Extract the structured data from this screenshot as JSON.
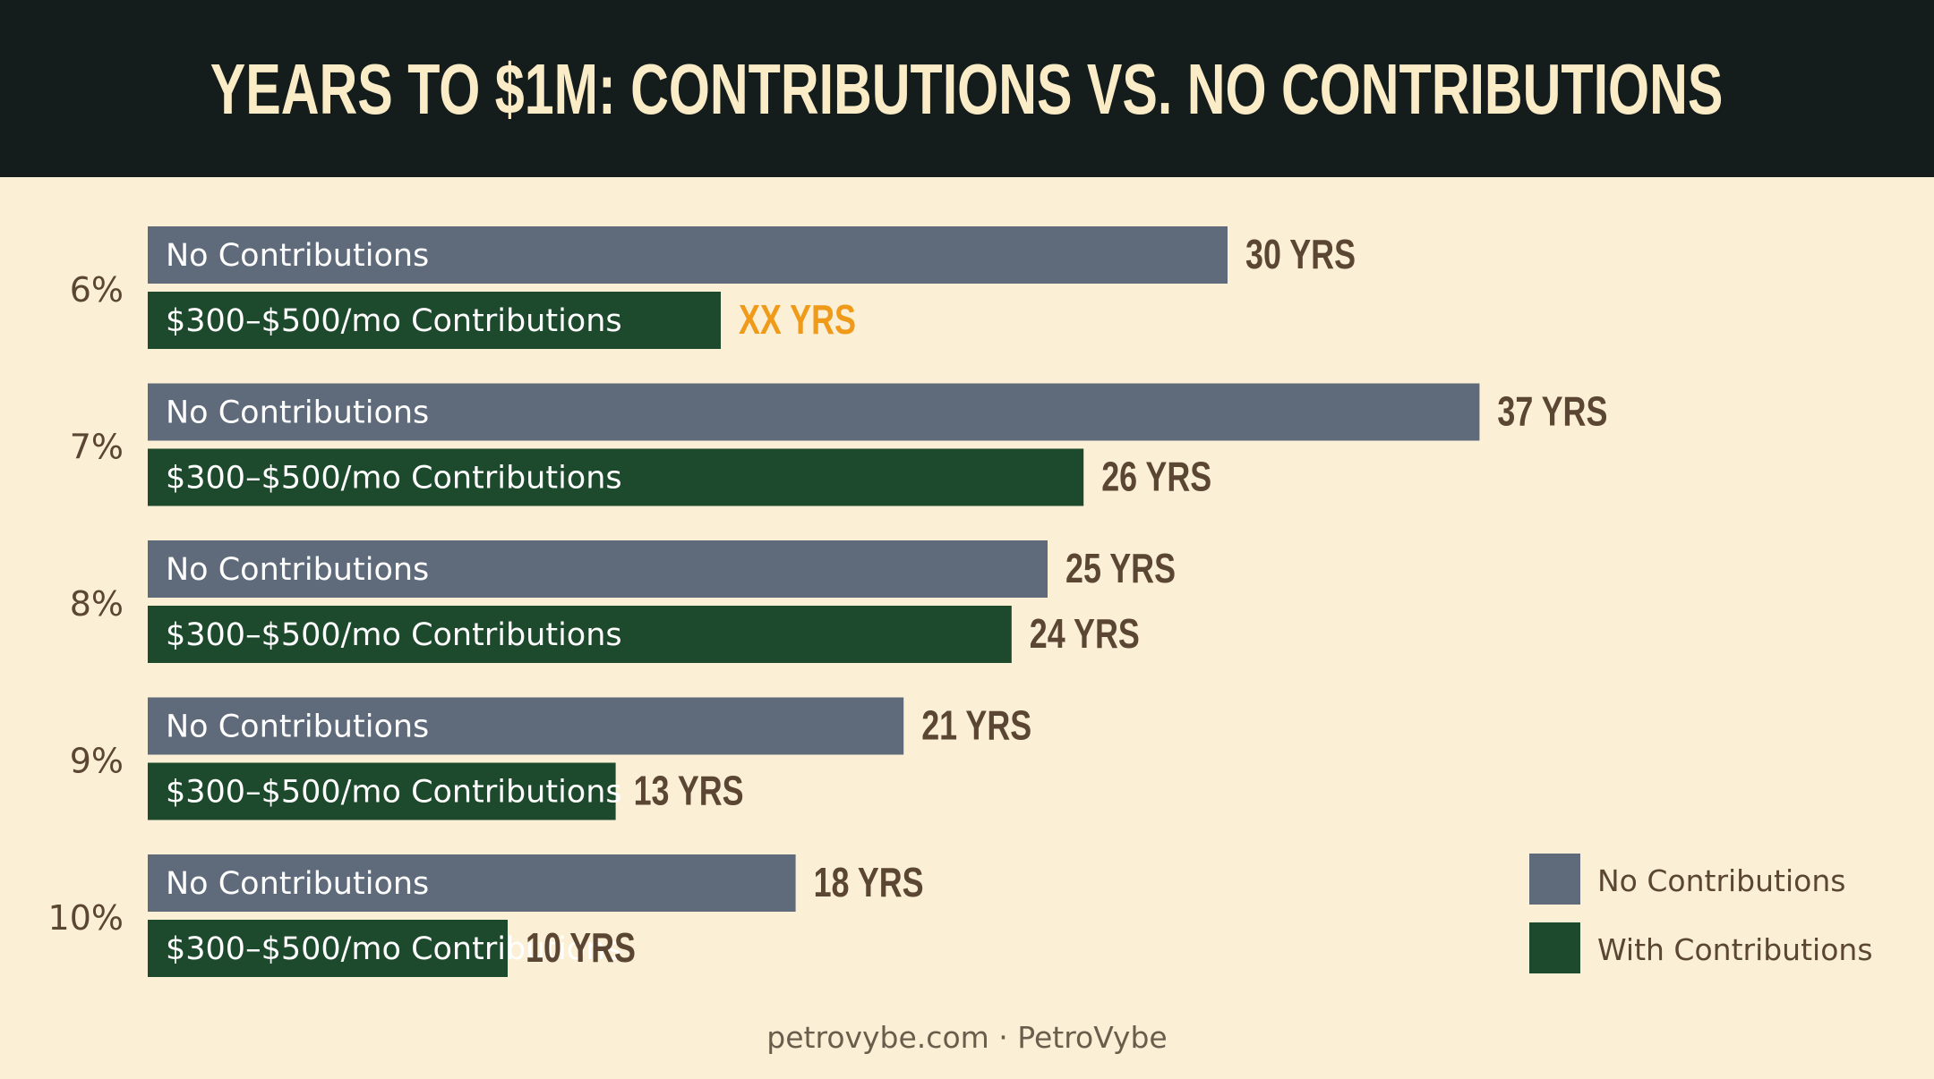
{
  "colors": {
    "header_bg": "#141c1c",
    "title": "#fbecc8",
    "background": "#fbefd6",
    "no_contrib": "#5f6b7a",
    "with_contrib": "#1d4a2c",
    "value_text": "#5a4632",
    "highlight": "#f09a1a",
    "bar_text": "#ffffff"
  },
  "chart_data": {
    "type": "bar",
    "orientation": "horizontal",
    "title": "YEARS TO $1M: CONTRIBUTIONS VS. NO CONTRIBUTIONS",
    "categories": [
      "6%",
      "7%",
      "8%",
      "9%",
      "10%"
    ],
    "bar_labels": {
      "no_contrib": "No Contributions",
      "with_contrib": "$300–$500/mo Contributions"
    },
    "series": [
      {
        "name": "No Contributions",
        "color": "#5f6b7a",
        "values": [
          30,
          37,
          25,
          21,
          18
        ],
        "labels": [
          "30 YRS",
          "37 YRS",
          "25 YRS",
          "21 YRS",
          "18 YRS"
        ]
      },
      {
        "name": "With Contributions",
        "color": "#1d4a2c",
        "values": [
          null,
          26,
          24,
          13,
          10
        ],
        "labels": [
          "XX YRS",
          "26 YRS",
          "24 YRS",
          "13 YRS",
          "10 YRS"
        ]
      }
    ],
    "scale_max": 37,
    "legend": [
      "No Contributions",
      "With Contributions"
    ],
    "legend_position": "bottom-right",
    "grid": false
  },
  "footer": "petrovybe.com · PetroVybe"
}
